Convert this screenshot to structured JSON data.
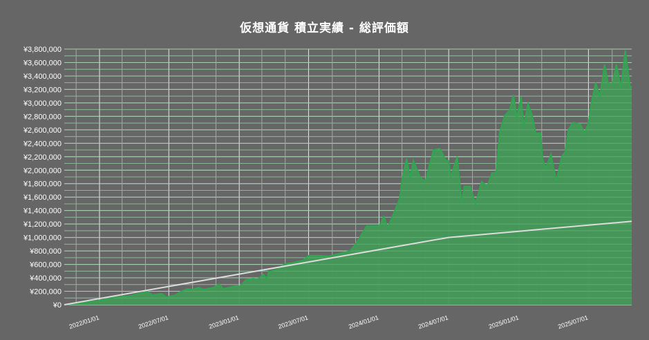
{
  "chart_data": {
    "type": "area",
    "title": "仮想通貨 積立実績 - 総評価額",
    "xlabel": "",
    "ylabel": "",
    "xlim": [
      "2021-10-01",
      "2025-10-22"
    ],
    "ylim": [
      0,
      3800000
    ],
    "y_ticks": [
      "¥0",
      "¥200,000",
      "¥400,000",
      "¥600,000",
      "¥800,000",
      "¥1,000,000",
      "¥1,200,000",
      "¥1,400,000",
      "¥1,600,000",
      "¥1,800,000",
      "¥2,000,000",
      "¥2,200,000",
      "¥2,400,000",
      "¥2,600,000",
      "¥2,800,000",
      "¥3,000,000",
      "¥3,200,000",
      "¥3,400,000",
      "¥3,600,000",
      "¥3,800,000"
    ],
    "x_ticks": [
      "2022/01/01",
      "2022/07/01",
      "2023/01/01",
      "2023/07/01",
      "2024/01/01",
      "2024/07/01",
      "2025/01/01",
      "2025/07/01"
    ],
    "grid": true,
    "colors": {
      "background": "#666666",
      "area_fill": "#45985a",
      "area_line": "#2ea84f",
      "cost_line": "#dddddd",
      "grid_minor": "#a8a8a8",
      "grid_major": "#e8e8e8"
    },
    "series": [
      {
        "kind": "area",
        "points": [
          [
            "2021-10-01",
            0
          ],
          [
            "2022-01-01",
            62000
          ],
          [
            "2022-02-10",
            113000
          ],
          [
            "2022-03-22",
            133000
          ],
          [
            "2022-05-06",
            195000
          ],
          [
            "2022-05-20",
            144000
          ],
          [
            "2022-06-12",
            164000
          ],
          [
            "2022-06-25",
            113000
          ],
          [
            "2022-07-19",
            144000
          ],
          [
            "2022-08-01",
            195000
          ],
          [
            "2022-08-19",
            236000
          ],
          [
            "2022-09-02",
            226000
          ],
          [
            "2022-09-17",
            257000
          ],
          [
            "2022-09-30",
            226000
          ],
          [
            "2022-10-27",
            257000
          ],
          [
            "2022-11-09",
            308000
          ],
          [
            "2022-11-20",
            236000
          ],
          [
            "2022-12-21",
            277000
          ],
          [
            "2023-01-04",
            277000
          ],
          [
            "2023-01-18",
            370000
          ],
          [
            "2023-02-06",
            390000
          ],
          [
            "2023-02-18",
            380000
          ],
          [
            "2023-03-05",
            452000
          ],
          [
            "2023-03-14",
            390000
          ],
          [
            "2023-03-19",
            493000
          ],
          [
            "2023-04-11",
            524000
          ],
          [
            "2023-04-29",
            606000
          ],
          [
            "2023-05-17",
            620000
          ],
          [
            "2023-06-17",
            660000
          ],
          [
            "2023-07-01",
            730000
          ],
          [
            "2023-07-27",
            730000
          ],
          [
            "2023-08-23",
            720000
          ],
          [
            "2023-09-20",
            760000
          ],
          [
            "2023-10-17",
            800000
          ],
          [
            "2023-11-01",
            900000
          ],
          [
            "2023-11-30",
            1170000
          ],
          [
            "2024-01-01",
            1170000
          ],
          [
            "2024-01-14",
            1310000
          ],
          [
            "2024-01-23",
            1140000
          ],
          [
            "2024-02-10",
            1380000
          ],
          [
            "2024-02-24",
            1580000
          ],
          [
            "2024-03-02",
            1890000
          ],
          [
            "2024-03-13",
            2170000
          ],
          [
            "2024-03-22",
            1890000
          ],
          [
            "2024-03-31",
            2140000
          ],
          [
            "2024-04-18",
            1890000
          ],
          [
            "2024-05-01",
            1830000
          ],
          [
            "2024-05-22",
            2300000
          ],
          [
            "2024-06-08",
            2320000
          ],
          [
            "2024-06-24",
            2140000
          ],
          [
            "2024-07-01",
            2140000
          ],
          [
            "2024-07-06",
            1890000
          ],
          [
            "2024-07-23",
            2200000
          ],
          [
            "2024-08-04",
            1520000
          ],
          [
            "2024-08-11",
            1760000
          ],
          [
            "2024-08-26",
            1760000
          ],
          [
            "2024-09-09",
            1500000
          ],
          [
            "2024-09-25",
            1830000
          ],
          [
            "2024-10-10",
            1760000
          ],
          [
            "2024-10-22",
            1960000
          ],
          [
            "2024-11-02",
            1960000
          ],
          [
            "2024-11-11",
            2550000
          ],
          [
            "2024-11-24",
            2810000
          ],
          [
            "2024-12-07",
            2890000
          ],
          [
            "2024-12-17",
            3120000
          ],
          [
            "2024-12-26",
            2780000
          ],
          [
            "2025-01-06",
            3090000
          ],
          [
            "2025-01-13",
            2650000
          ],
          [
            "2025-01-24",
            2990000
          ],
          [
            "2025-02-04",
            2810000
          ],
          [
            "2025-02-13",
            2550000
          ],
          [
            "2025-02-26",
            2550000
          ],
          [
            "2025-03-03",
            2170000
          ],
          [
            "2025-03-12",
            2030000
          ],
          [
            "2025-03-25",
            2240000
          ],
          [
            "2025-04-08",
            1830000
          ],
          [
            "2025-04-22",
            2200000
          ],
          [
            "2025-05-01",
            2270000
          ],
          [
            "2025-05-10",
            2610000
          ],
          [
            "2025-05-23",
            2710000
          ],
          [
            "2025-06-10",
            2680000
          ],
          [
            "2025-06-21",
            2550000
          ],
          [
            "2025-07-01",
            2710000
          ],
          [
            "2025-07-11",
            3060000
          ],
          [
            "2025-07-20",
            3300000
          ],
          [
            "2025-07-31",
            3090000
          ],
          [
            "2025-08-12",
            3570000
          ],
          [
            "2025-08-21",
            3300000
          ],
          [
            "2025-09-01",
            3270000
          ],
          [
            "2025-09-12",
            3570000
          ],
          [
            "2025-09-24",
            3220000
          ],
          [
            "2025-10-05",
            3780000
          ],
          [
            "2025-10-18",
            3220000
          ],
          [
            "2025-10-22",
            3250000
          ]
        ]
      },
      {
        "kind": "line",
        "points": [
          [
            "2021-10-01",
            0
          ],
          [
            "2024-07-01",
            1000000
          ],
          [
            "2025-10-22",
            1240000
          ]
        ]
      }
    ]
  }
}
